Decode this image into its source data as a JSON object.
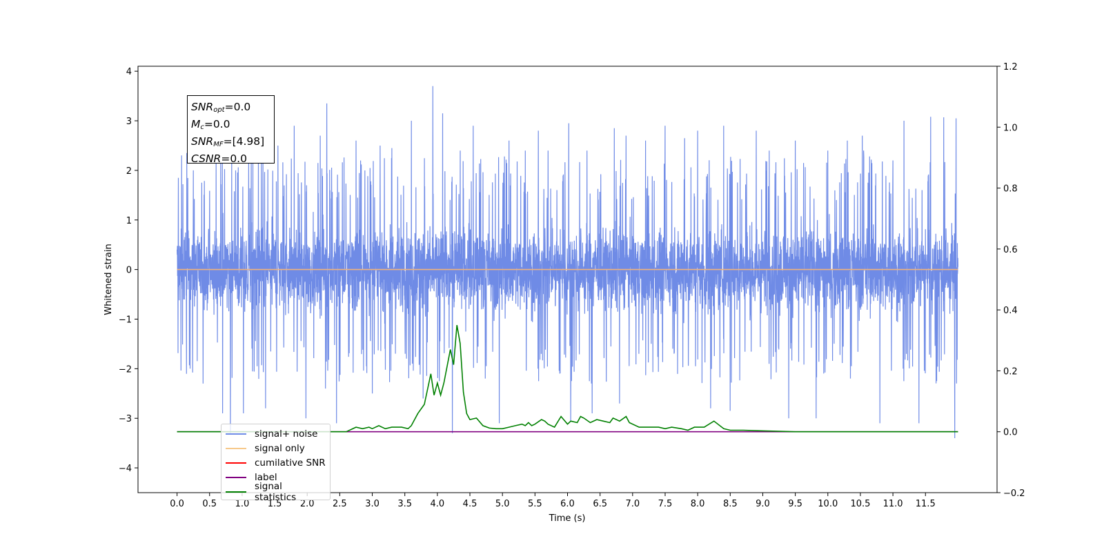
{
  "chart_data": {
    "type": "line",
    "xlabel": "Time (s)",
    "ylabel": "Whitened strain",
    "xlim": [
      -0.6,
      12.6
    ],
    "ylim": [
      -4.5,
      4.1
    ],
    "y2lim": [
      -0.2,
      1.2
    ],
    "x_ticks": [
      "0.0",
      "0.5",
      "1.0",
      "1.5",
      "2.0",
      "2.5",
      "3.0",
      "3.5",
      "4.0",
      "4.5",
      "5.0",
      "5.5",
      "6.0",
      "6.5",
      "7.0",
      "7.5",
      "8.0",
      "8.5",
      "9.0",
      "9.5",
      "10.0",
      "10.5",
      "11.0",
      "11.5"
    ],
    "y_ticks": [
      "4",
      "3",
      "2",
      "1",
      "0",
      "−1",
      "−2",
      "−3",
      "−4"
    ],
    "y2_ticks": [
      "1.2",
      "1.0",
      "0.8",
      "0.6",
      "0.4",
      "0.2",
      "0.0",
      "−0.2"
    ],
    "grid": false,
    "legend_position": "lower-left",
    "annotation": {
      "snr_opt": "=0.0",
      "mc": "=0.0",
      "snr_mf": "=[4.98]",
      "csnr": "=0.0"
    },
    "series": [
      {
        "name": "signal+ noise",
        "color": "#6f8be6",
        "axis": "left",
        "x_range": [
          0.0,
          12.0
        ],
        "band_min": -1.7,
        "band_max": 1.7,
        "peak_min": -3.4,
        "peak_max": 3.72,
        "spikes": [
          [
            0.02,
            1.85
          ],
          [
            0.07,
            2.3
          ],
          [
            0.15,
            2.35
          ],
          [
            0.2,
            -2.0
          ],
          [
            0.25,
            2.0
          ],
          [
            0.4,
            -2.3
          ],
          [
            0.6,
            2.2
          ],
          [
            0.7,
            -2.9
          ],
          [
            0.82,
            -3.3
          ],
          [
            0.9,
            2.0
          ],
          [
            1.02,
            -2.9
          ],
          [
            1.1,
            2.2
          ],
          [
            1.25,
            2.4
          ],
          [
            1.36,
            -2.8
          ],
          [
            1.55,
            2.5
          ],
          [
            1.8,
            2.9
          ],
          [
            1.98,
            -3.0
          ],
          [
            2.2,
            2.7
          ],
          [
            2.28,
            -2.4
          ],
          [
            2.3,
            3.35
          ],
          [
            2.45,
            -3.1
          ],
          [
            2.75,
            2.6
          ],
          [
            3.0,
            -2.5
          ],
          [
            3.12,
            2.5
          ],
          [
            3.3,
            2.45
          ],
          [
            3.6,
            3.0
          ],
          [
            3.78,
            -2.6
          ],
          [
            3.93,
            3.7
          ],
          [
            4.08,
            3.15
          ],
          [
            4.23,
            -3.3
          ],
          [
            4.35,
            2.4
          ],
          [
            4.55,
            2.9
          ],
          [
            4.95,
            -3.1
          ],
          [
            5.1,
            2.6
          ],
          [
            5.35,
            2.4
          ],
          [
            5.55,
            2.8
          ],
          [
            5.7,
            2.4
          ],
          [
            5.88,
            -2.1
          ],
          [
            6.02,
            2.95
          ],
          [
            6.05,
            -3.05
          ],
          [
            6.3,
            2.4
          ],
          [
            6.38,
            -2.9
          ],
          [
            6.72,
            2.85
          ],
          [
            6.8,
            -2.7
          ],
          [
            6.9,
            2.7
          ],
          [
            7.2,
            2.6
          ],
          [
            7.5,
            2.9
          ],
          [
            7.8,
            2.65
          ],
          [
            8.0,
            2.8
          ],
          [
            8.2,
            -2.8
          ],
          [
            8.4,
            2.9
          ],
          [
            8.5,
            -2.85
          ],
          [
            8.9,
            2.8
          ],
          [
            9.1,
            2.4
          ],
          [
            9.4,
            -3.0
          ],
          [
            9.5,
            2.6
          ],
          [
            9.82,
            -3.0
          ],
          [
            10.0,
            2.4
          ],
          [
            10.3,
            2.6
          ],
          [
            10.53,
            2.7
          ],
          [
            10.55,
            2.4
          ],
          [
            10.8,
            -3.1
          ],
          [
            11.0,
            2.2
          ],
          [
            11.17,
            3.0
          ],
          [
            11.4,
            -3.1
          ],
          [
            11.58,
            3.08
          ],
          [
            11.78,
            3.07
          ],
          [
            11.95,
            -3.4
          ],
          [
            11.97,
            3.05
          ]
        ]
      },
      {
        "name": "signal only",
        "color": "#f0b27a",
        "axis": "left",
        "x": [
          0.0,
          12.0
        ],
        "values": [
          0.0,
          0.0
        ]
      },
      {
        "name": "cumilative SNR",
        "color": "#ff0000",
        "axis": "right",
        "x": [],
        "values": []
      },
      {
        "name": "label",
        "color": "#800080",
        "axis": "right",
        "x": [
          0.0,
          12.0
        ],
        "values": [
          0.0,
          0.0
        ]
      },
      {
        "name": "signal statistics",
        "color": "#008000",
        "axis": "right",
        "x": [
          0.0,
          0.5,
          1.0,
          1.5,
          2.0,
          2.4,
          2.55,
          2.6,
          2.75,
          2.85,
          2.95,
          3.0,
          3.1,
          3.2,
          3.3,
          3.4,
          3.45,
          3.55,
          3.6,
          3.7,
          3.8,
          3.9,
          3.95,
          4.0,
          4.05,
          4.1,
          4.2,
          4.25,
          4.3,
          4.35,
          4.4,
          4.45,
          4.5,
          4.6,
          4.7,
          4.8,
          4.9,
          5.0,
          5.1,
          5.2,
          5.3,
          5.35,
          5.4,
          5.45,
          5.5,
          5.6,
          5.65,
          5.7,
          5.8,
          5.9,
          6.0,
          6.05,
          6.15,
          6.2,
          6.25,
          6.35,
          6.45,
          6.55,
          6.65,
          6.7,
          6.8,
          6.9,
          6.95,
          7.1,
          7.2,
          7.4,
          7.5,
          7.6,
          7.75,
          7.85,
          7.95,
          8.1,
          8.25,
          8.4,
          8.5,
          8.7,
          9.0,
          9.5,
          10.0,
          11.0,
          12.0
        ],
        "values": [
          0.0,
          0.0,
          0.0,
          0.0,
          0.0,
          0.0,
          0.0,
          0.0,
          0.015,
          0.01,
          0.015,
          0.01,
          0.02,
          0.01,
          0.015,
          0.015,
          0.015,
          0.01,
          0.02,
          0.06,
          0.09,
          0.19,
          0.12,
          0.16,
          0.12,
          0.16,
          0.27,
          0.22,
          0.35,
          0.29,
          0.13,
          0.06,
          0.04,
          0.045,
          0.02,
          0.012,
          0.01,
          0.01,
          0.015,
          0.02,
          0.025,
          0.02,
          0.03,
          0.02,
          0.025,
          0.04,
          0.035,
          0.025,
          0.015,
          0.05,
          0.025,
          0.035,
          0.03,
          0.05,
          0.045,
          0.03,
          0.04,
          0.035,
          0.03,
          0.045,
          0.035,
          0.05,
          0.03,
          0.015,
          0.015,
          0.015,
          0.01,
          0.015,
          0.01,
          0.005,
          0.015,
          0.015,
          0.035,
          0.01,
          0.005,
          0.005,
          0.003,
          0.0,
          0.0,
          0.0,
          0.0
        ]
      }
    ]
  }
}
